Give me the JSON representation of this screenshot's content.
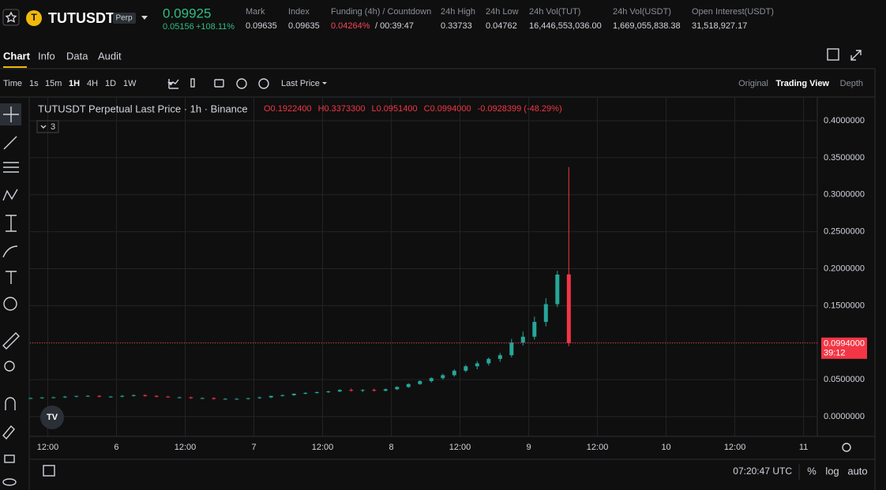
{
  "header": {
    "symbol": "TUTUSDT",
    "badge": "Perp",
    "price": "0.09925",
    "change": "0.05156",
    "change_pct": "+108.11%",
    "stats": [
      {
        "label": "Mark",
        "value": "0.09635"
      },
      {
        "label": "Index",
        "value": "0.09635"
      },
      {
        "label": "Funding (4h) / Countdown",
        "value": "0.04264%",
        "extra": "/ 00:39:47"
      },
      {
        "label": "24h High",
        "value": "0.33733"
      },
      {
        "label": "24h Low",
        "value": "0.04762"
      },
      {
        "label": "24h Vol(TUT)",
        "value": "16,446,553,036.00"
      },
      {
        "label": "24h Vol(USDT)",
        "value": "1,669,055,838.38"
      },
      {
        "label": "Open Interest(USDT)",
        "value": "31,518,927.17"
      }
    ]
  },
  "tabs": [
    "Chart",
    "Info",
    "Data",
    "Audit"
  ],
  "intervals": [
    "Time",
    "1s",
    "15m",
    "1H",
    "4H",
    "1D",
    "1W"
  ],
  "price_source": "Last Price",
  "views": [
    "Original",
    "Trading View",
    "Depth"
  ],
  "footer": {
    "clock": "07:20:47 UTC",
    "options": [
      "%",
      "log",
      "auto"
    ]
  },
  "chart_data": {
    "type": "candlestick",
    "title": "TUTUSDT Perpetual Last Price · 1h · Binance",
    "legend_values": [
      "O0.1922400",
      "H0.3373300",
      "L0.0951400",
      "C0.0994000",
      "-0.0928399 (-48.29%)"
    ],
    "indicator_count": 3,
    "up_color": "#26a69a",
    "down_color": "#f23645",
    "x": [
      9,
      11,
      13,
      15,
      17,
      19,
      21,
      23,
      25,
      27,
      29,
      31,
      33,
      35,
      37,
      39,
      41,
      43,
      45,
      47,
      49,
      51,
      53,
      55,
      57,
      59,
      61,
      63,
      65,
      67,
      69,
      71,
      73,
      75,
      77,
      79,
      81,
      83,
      85,
      87,
      89,
      91,
      93,
      95,
      97,
      99,
      101,
      103
    ],
    "candles": [
      [
        0.025,
        0.026,
        0.024,
        0.025
      ],
      [
        0.025,
        0.026,
        0.024,
        0.026
      ],
      [
        0.026,
        0.027,
        0.025,
        0.026
      ],
      [
        0.026,
        0.028,
        0.025,
        0.027
      ],
      [
        0.027,
        0.028,
        0.026,
        0.028
      ],
      [
        0.028,
        0.029,
        0.027,
        0.028
      ],
      [
        0.028,
        0.029,
        0.026,
        0.027
      ],
      [
        0.027,
        0.028,
        0.026,
        0.027
      ],
      [
        0.027,
        0.029,
        0.026,
        0.028
      ],
      [
        0.028,
        0.03,
        0.027,
        0.029
      ],
      [
        0.029,
        0.03,
        0.027,
        0.028
      ],
      [
        0.028,
        0.029,
        0.026,
        0.027
      ],
      [
        0.027,
        0.028,
        0.026,
        0.026
      ],
      [
        0.026,
        0.027,
        0.025,
        0.026
      ],
      [
        0.026,
        0.027,
        0.024,
        0.025
      ],
      [
        0.025,
        0.026,
        0.024,
        0.025
      ],
      [
        0.025,
        0.026,
        0.023,
        0.024
      ],
      [
        0.024,
        0.025,
        0.023,
        0.024
      ],
      [
        0.024,
        0.025,
        0.023,
        0.024
      ],
      [
        0.024,
        0.025,
        0.023,
        0.025
      ],
      [
        0.025,
        0.027,
        0.024,
        0.026
      ],
      [
        0.026,
        0.028,
        0.025,
        0.028
      ],
      [
        0.028,
        0.03,
        0.027,
        0.029
      ],
      [
        0.029,
        0.031,
        0.028,
        0.031
      ],
      [
        0.031,
        0.033,
        0.03,
        0.032
      ],
      [
        0.032,
        0.034,
        0.031,
        0.033
      ],
      [
        0.033,
        0.035,
        0.032,
        0.034
      ],
      [
        0.034,
        0.037,
        0.033,
        0.036
      ],
      [
        0.036,
        0.038,
        0.034,
        0.035
      ],
      [
        0.035,
        0.037,
        0.033,
        0.036
      ],
      [
        0.036,
        0.038,
        0.034,
        0.035
      ],
      [
        0.035,
        0.038,
        0.034,
        0.037
      ],
      [
        0.037,
        0.041,
        0.036,
        0.04
      ],
      [
        0.04,
        0.045,
        0.039,
        0.044
      ],
      [
        0.044,
        0.049,
        0.043,
        0.048
      ],
      [
        0.048,
        0.053,
        0.046,
        0.052
      ],
      [
        0.052,
        0.058,
        0.05,
        0.056
      ],
      [
        0.056,
        0.064,
        0.054,
        0.062
      ],
      [
        0.062,
        0.07,
        0.06,
        0.068
      ],
      [
        0.068,
        0.075,
        0.064,
        0.072
      ],
      [
        0.072,
        0.08,
        0.069,
        0.078
      ],
      [
        0.078,
        0.086,
        0.074,
        0.083
      ],
      [
        0.083,
        0.105,
        0.08,
        0.1
      ],
      [
        0.1,
        0.115,
        0.096,
        0.108
      ],
      [
        0.108,
        0.135,
        0.104,
        0.128
      ],
      [
        0.128,
        0.16,
        0.122,
        0.152
      ],
      [
        0.152,
        0.197,
        0.148,
        0.192
      ],
      [
        0.19224,
        0.33733,
        0.09514,
        0.0994
      ]
    ],
    "xlim": [
      8.9,
      146.4
    ],
    "xticks": [
      {
        "value": 12,
        "label": "12:00"
      },
      {
        "value": 24,
        "label": "6"
      },
      {
        "value": 36,
        "label": "12:00"
      },
      {
        "value": 48,
        "label": "7"
      },
      {
        "value": 60,
        "label": "12:00"
      },
      {
        "value": 72,
        "label": "8"
      },
      {
        "value": 84,
        "label": "12:00"
      },
      {
        "value": 96,
        "label": "9"
      },
      {
        "value": 108,
        "label": "12:00"
      },
      {
        "value": 120,
        "label": "10"
      },
      {
        "value": 132,
        "label": "12:00"
      },
      {
        "value": 144,
        "label": "11"
      }
    ],
    "ylim": [
      -0.0267,
      0.432
    ],
    "yticks": [
      {
        "value": 0,
        "label": "0.0000000"
      },
      {
        "value": 0.05,
        "label": "0.0500000"
      },
      {
        "value": 0.1,
        "label": "0.1000000"
      },
      {
        "value": 0.15,
        "label": "0.1500000"
      },
      {
        "value": 0.2,
        "label": "0.2000000"
      },
      {
        "value": 0.25,
        "label": "0.2500000"
      },
      {
        "value": 0.3,
        "label": "0.3000000"
      },
      {
        "value": 0.35,
        "label": "0.3500000"
      },
      {
        "value": 0.4,
        "label": "0.4000000"
      }
    ],
    "last_price": {
      "value": 0.0994,
      "label": "0.0994000",
      "countdown": "39:12"
    },
    "grid": true
  }
}
